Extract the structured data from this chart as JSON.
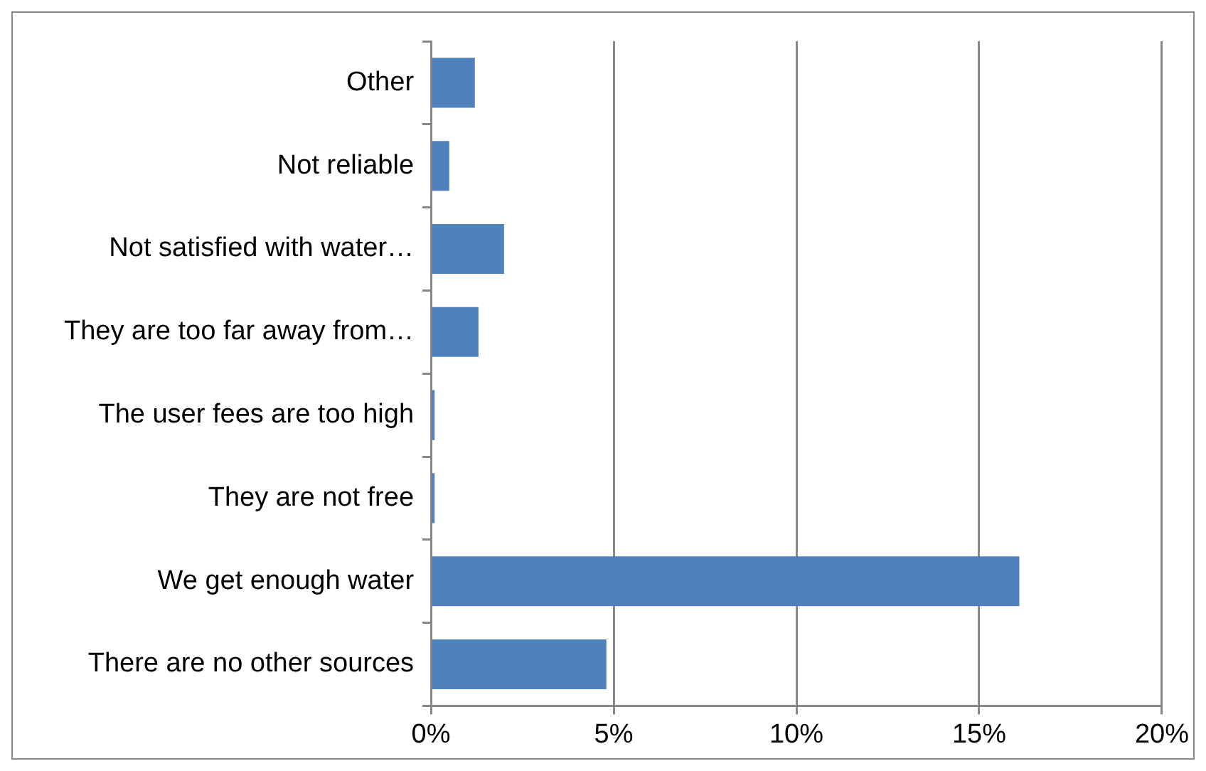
{
  "chart_data": {
    "type": "bar",
    "orientation": "horizontal",
    "categories": [
      "Other",
      "Not reliable",
      "Not satisfied with water…",
      "They are too far away from…",
      "The user fees are too high",
      "They are not free",
      "We get enough water",
      "There are no other sources"
    ],
    "values": [
      1.2,
      0.5,
      2.0,
      1.3,
      0.1,
      0.1,
      16.1,
      4.8
    ],
    "color": "#4f81bd",
    "xlim": [
      0,
      20
    ],
    "xticks": [
      {
        "value": 0,
        "label": "0%"
      },
      {
        "value": 5,
        "label": "5%"
      },
      {
        "value": 10,
        "label": "10%"
      },
      {
        "value": 15,
        "label": "15%"
      },
      {
        "value": 20,
        "label": "20%"
      }
    ],
    "grid": "x",
    "legend": false
  }
}
